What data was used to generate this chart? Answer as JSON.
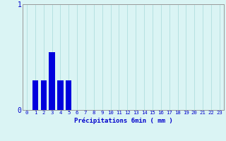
{
  "categories": [
    0,
    1,
    2,
    3,
    4,
    5,
    6,
    7,
    8,
    9,
    10,
    11,
    12,
    13,
    14,
    15,
    16,
    17,
    18,
    19,
    20,
    21,
    22,
    23
  ],
  "values": [
    0,
    0.28,
    0.28,
    0.55,
    0.28,
    0.28,
    0,
    0,
    0,
    0,
    0,
    0,
    0,
    0,
    0,
    0,
    0,
    0,
    0,
    0,
    0,
    0,
    0,
    0
  ],
  "bar_color": "#0000dd",
  "bg_color": "#daf4f4",
  "plot_bg_color": "#daf4f4",
  "grid_color": "#b0dede",
  "axis_color": "#999999",
  "text_color": "#0000cc",
  "xlabel": "Précipitations 6min ( mm )",
  "ylim": [
    0,
    1.0
  ],
  "yticks": [
    0,
    1
  ],
  "xlabel_fontsize": 6.5,
  "tick_fontsize": 5.2
}
